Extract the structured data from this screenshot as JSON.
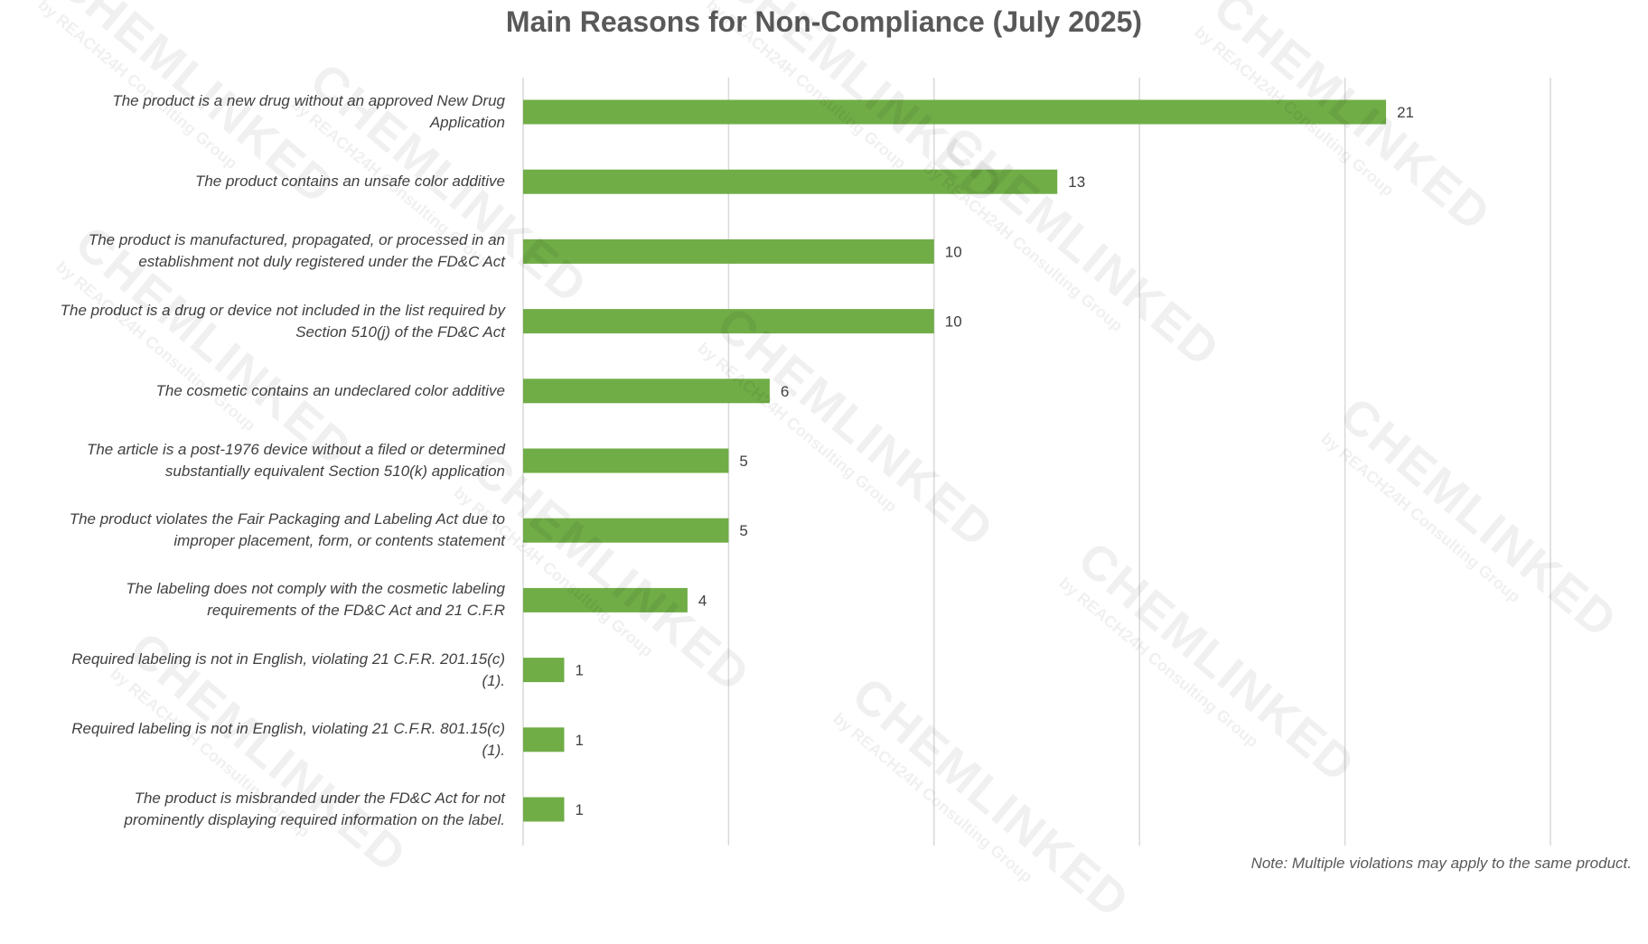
{
  "chart_data": {
    "type": "bar",
    "orientation": "horizontal",
    "title": "Main Reasons for Non-Compliance (July 2025)",
    "categories": [
      "The product is a new drug without an approved New Drug Application",
      "The product contains an unsafe color additive",
      "The product is manufactured, propagated, or processed in an establishment not duly registered under the FD&C Act",
      "The product is a drug or device not included in the list required by Section 510(j) of the FD&C Act",
      "The cosmetic contains an undeclared color additive",
      "The article is a post-1976 device without a filed or determined substantially equivalent Section 510(k) application",
      "The product violates the Fair Packaging and Labeling Act due to improper placement, form, or contents statement",
      "The labeling does not comply with the cosmetic labeling requirements of the FD&C Act and 21 C.F.R",
      "Required labeling is not in English, violating 21 C.F.R. 201.15(c)(1).",
      "Required labeling is not in English, violating 21 C.F.R. 801.15(c)(1).",
      "The product is misbranded under the FD&C Act for not prominently displaying required information on the label."
    ],
    "values": [
      21,
      13,
      10,
      10,
      6,
      5,
      5,
      4,
      1,
      1,
      1
    ],
    "color": "#70ad47",
    "xlim": [
      0,
      25
    ],
    "xticks": [
      0,
      5,
      10,
      15,
      20,
      25
    ],
    "grid": true,
    "note": "Note: Multiple violations may apply to the same product.",
    "watermark": {
      "title": "CHEMLINKED",
      "subtitle": "by REACH24H Consulting Group"
    }
  }
}
